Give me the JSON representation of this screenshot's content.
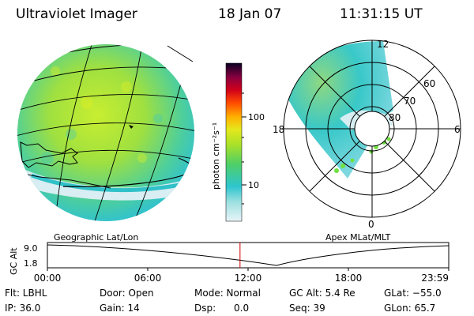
{
  "header": {
    "instrument": "Ultraviolet Imager",
    "date": "18 Jan 07",
    "time": "11:31:15 UT"
  },
  "colorbar": {
    "unit_label": "photon cm⁻²s⁻¹",
    "ticks": [
      "100",
      "10"
    ]
  },
  "polar_plot": {
    "label_top": "12",
    "label_bottom": "0",
    "label_left": "18",
    "label_right": "6",
    "lat_labels": [
      "60",
      "70",
      "80"
    ]
  },
  "panel_labels": {
    "geo": "Geographic Lat/Lon",
    "apex": "Apex MLat/MLT"
  },
  "altitude_plot": {
    "ylabel": "GC Alt",
    "yticks": [
      "9.0",
      "1.8"
    ],
    "xticks": [
      "00:00",
      "06:00",
      "12:00",
      "18:00",
      "23:59"
    ],
    "current_time_frac": 0.48,
    "marker_color": "#d00000"
  },
  "info": {
    "filter": "Flt: LBHL",
    "ip": "IP: 36.0",
    "door": "Door: Open",
    "gain": "Gain: 14",
    "mode": "Mode: Normal",
    "dsp": "Dsp:      0.0",
    "gc_alt": "GC Alt: 5.4 Re",
    "seq": "Seq: 39",
    "glat": "GLat: −55.0",
    "glon": "GLon: 65.7"
  }
}
